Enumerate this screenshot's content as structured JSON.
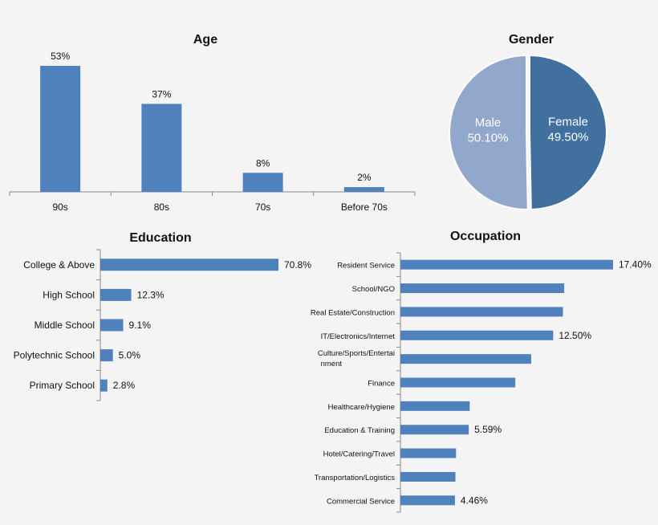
{
  "chart_data": [
    {
      "type": "bar",
      "title": "Age",
      "categories": [
        "90s",
        "80s",
        "70s",
        "Before 70s"
      ],
      "values": [
        53,
        37,
        8,
        2
      ],
      "value_labels": [
        "53%",
        "37%",
        "8%",
        "2%"
      ],
      "ylim": [
        0,
        60
      ],
      "orientation": "vertical",
      "color": "#4f81bd",
      "grid": false
    },
    {
      "type": "pie",
      "title": "Gender",
      "slices": [
        {
          "label": "Female",
          "value": 49.5,
          "value_label": "49.50%",
          "color": "#41709f"
        },
        {
          "label": "Male",
          "value": 50.1,
          "value_label": "50.10%",
          "color": "#92a7cc"
        }
      ]
    },
    {
      "type": "bar",
      "title": "Education",
      "orientation": "horizontal",
      "categories": [
        "College & Above",
        "High School",
        "Middle School",
        "Polytechnic School",
        "Primary School"
      ],
      "values": [
        70.8,
        12.3,
        9.1,
        5.0,
        2.8
      ],
      "value_labels": [
        "70.8%",
        "12.3%",
        "9.1%",
        "5.0%",
        "2.8%"
      ],
      "xlim": [
        0,
        80
      ],
      "color": "#4f81bd",
      "grid": false
    },
    {
      "type": "bar",
      "title": "Occupation",
      "orientation": "horizontal",
      "categories": [
        "Resident Service",
        "School/NGO",
        "Real Estate/Construction",
        "IT/Electronics/Internet",
        [
          "Culture/Sports/Entertai",
          "nment"
        ],
        "Finance",
        "Healthcare/Hygiene",
        "Education & Training",
        "Hotel/Catering/Travel",
        "Transportation/Logistics",
        "Commercial Service"
      ],
      "values": [
        17.4,
        13.4,
        13.3,
        12.5,
        10.7,
        9.4,
        5.67,
        5.59,
        4.55,
        4.5,
        4.46
      ],
      "value_labels": [
        "17.40%",
        "",
        "",
        "12.50%",
        "",
        "",
        "",
        "5.59%",
        "",
        "",
        "4.46%"
      ],
      "xlim": [
        0,
        20
      ],
      "color": "#4f81bd",
      "grid": false
    }
  ]
}
